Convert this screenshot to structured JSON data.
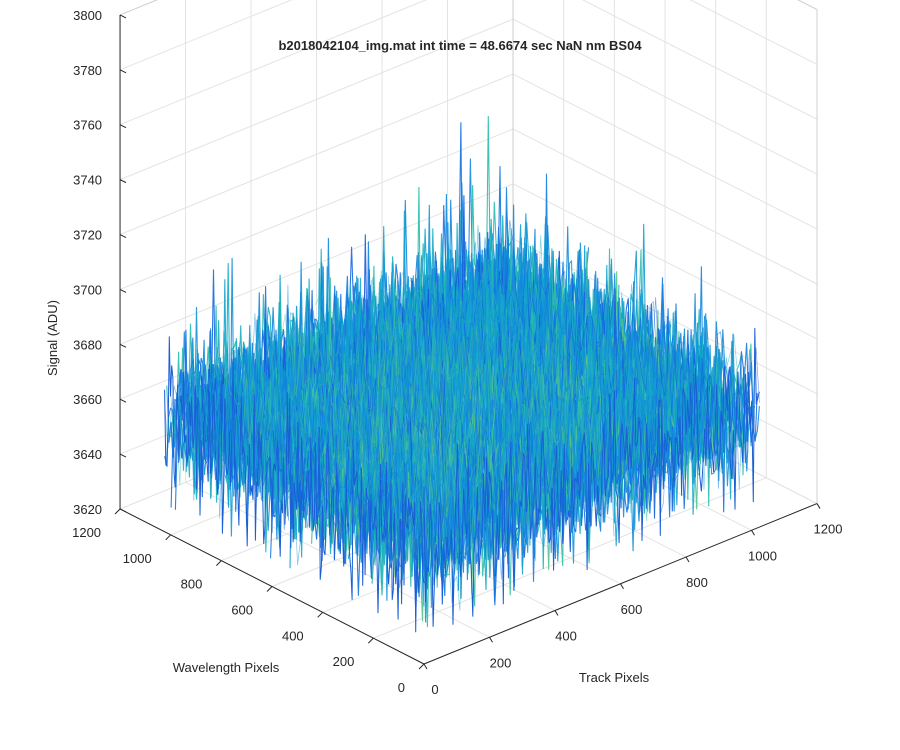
{
  "chart_data": {
    "type": "surface",
    "title": "b2018042104_img.mat int time = 48.6674 sec   NaN nm BS04",
    "xlabel": "Track Pixels",
    "ylabel": "Wavelength Pixels",
    "zlabel": "Signal (ADU)",
    "xlim": [
      0,
      1200
    ],
    "ylim": [
      0,
      1200
    ],
    "zlim": [
      3620,
      3800
    ],
    "xticks": [
      "0",
      "200",
      "400",
      "600",
      "800",
      "1000",
      "1200"
    ],
    "yticks": [
      "0",
      "200",
      "400",
      "600",
      "800",
      "1000",
      "1200"
    ],
    "zticks": [
      "3620",
      "3640",
      "3660",
      "3680",
      "3700",
      "3720",
      "3740",
      "3760",
      "3780",
      "3800"
    ],
    "data_extent": {
      "x": [
        0,
        1024
      ],
      "y": [
        0,
        1024
      ]
    },
    "signal": {
      "mean": 3663,
      "noise_min": 3630,
      "noise_max": 3745
    },
    "grid": true,
    "colormap": "parula"
  }
}
